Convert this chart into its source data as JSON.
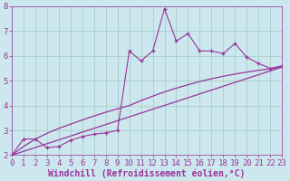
{
  "background_color": "#cce8ee",
  "grid_color": "#aacccc",
  "line_color": "#993399",
  "xlabel": "Windchill (Refroidissement éolien,°C)",
  "xlim": [
    0,
    23
  ],
  "ylim": [
    2,
    8
  ],
  "xticks": [
    0,
    1,
    2,
    3,
    4,
    5,
    6,
    7,
    8,
    9,
    10,
    11,
    12,
    13,
    14,
    15,
    16,
    17,
    18,
    19,
    20,
    21,
    22,
    23
  ],
  "yticks": [
    2,
    3,
    4,
    5,
    6,
    7,
    8
  ],
  "straight_line": [
    [
      0,
      2.0
    ],
    [
      23,
      5.55
    ]
  ],
  "curve_x": [
    0,
    1,
    2,
    3,
    4,
    5,
    6,
    7,
    8,
    9,
    10,
    11,
    12,
    13,
    14,
    15,
    16,
    17,
    18,
    19,
    20,
    21,
    22,
    23
  ],
  "curve_y": [
    2.0,
    2.35,
    2.65,
    2.88,
    3.08,
    3.25,
    3.42,
    3.58,
    3.73,
    3.87,
    4.0,
    4.2,
    4.38,
    4.55,
    4.7,
    4.84,
    4.97,
    5.08,
    5.18,
    5.27,
    5.35,
    5.42,
    5.48,
    5.55
  ],
  "jagged_x": [
    0,
    1,
    2,
    3,
    4,
    5,
    6,
    7,
    8,
    9,
    10,
    11,
    12,
    13,
    14,
    15,
    16,
    17,
    18,
    19,
    20,
    21,
    22,
    23
  ],
  "jagged_y": [
    2.0,
    2.65,
    2.65,
    2.3,
    2.35,
    2.6,
    2.75,
    2.85,
    2.9,
    3.0,
    6.2,
    5.8,
    6.2,
    7.9,
    6.6,
    6.9,
    6.2,
    6.2,
    6.1,
    6.5,
    5.95,
    5.7,
    5.5,
    5.6
  ],
  "font_size_label": 7,
  "font_size_tick": 6.5,
  "tick_color": "#993399",
  "label_color": "#993399"
}
